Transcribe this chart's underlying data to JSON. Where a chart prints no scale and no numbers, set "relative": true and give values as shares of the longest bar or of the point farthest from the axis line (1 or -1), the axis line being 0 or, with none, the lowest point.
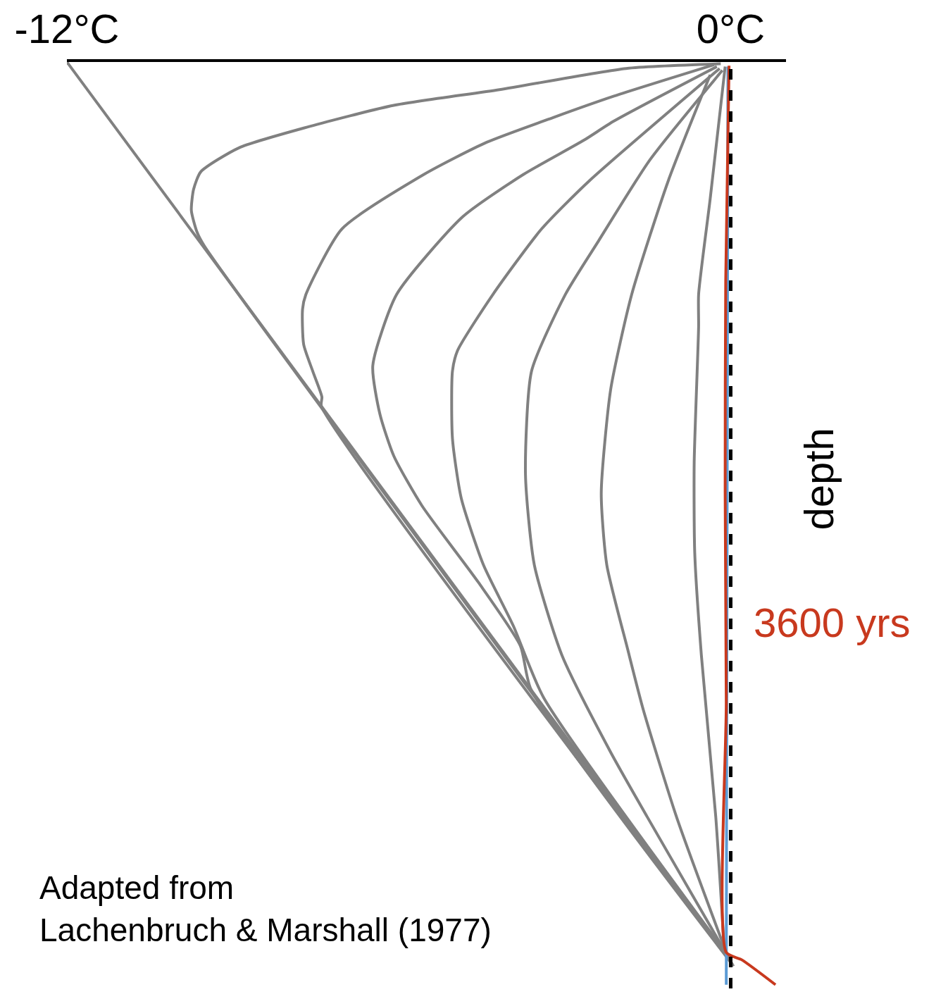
{
  "chart_data": {
    "type": "line",
    "relative": true,
    "ylabel": "depth",
    "xlim": [
      -12,
      1
    ],
    "xticks": [
      {
        "value": -12,
        "label": "-12°C"
      },
      {
        "value": 0,
        "label": "0°C"
      }
    ],
    "tick_labels": "x",
    "legend": false,
    "marker": "none",
    "line_style": "solid",
    "series": [
      {
        "color": "#808080",
        "x": [
          -12,
          -0.05
        ],
        "values": [
          0,
          -0.969
        ]
      },
      {
        "color": "#808080",
        "x": [
          -0.18,
          -1.89,
          -4.18,
          -6.09,
          -7.62,
          -8.89,
          -9.58,
          -9.71,
          -9.75,
          -9.65,
          -9.52,
          -0.03
        ],
        "values": [
          -0.002,
          -0.007,
          -0.03,
          -0.047,
          -0.07,
          -0.093,
          -0.119,
          -0.138,
          -0.161,
          -0.184,
          -0.199,
          -0.972
        ]
      },
      {
        "color": "#808080",
        "x": [
          -0.3,
          -2.11,
          -3.2,
          -4.41,
          -5.55,
          -7.03,
          -7.68,
          -7.74,
          -7.72,
          -7.55,
          -7.39,
          -7.4,
          0.0
        ],
        "values": [
          -0.003,
          -0.037,
          -0.06,
          -0.087,
          -0.122,
          -0.181,
          -0.252,
          -0.268,
          -0.306,
          -0.336,
          -0.363,
          -0.373,
          -0.975
        ]
      },
      {
        "color": "#808080",
        "x": [
          -0.25,
          -2.11,
          -2.66,
          -3.75,
          -4.85,
          -6.04,
          -6.47,
          -6.34,
          -6.09,
          -5.58,
          -4.56,
          -3.8,
          -3.61,
          0.03
        ],
        "values": [
          -0.005,
          -0.064,
          -0.085,
          -0.122,
          -0.168,
          -0.252,
          -0.329,
          -0.382,
          -0.427,
          -0.481,
          -0.564,
          -0.633,
          -0.68,
          -0.978
        ]
      },
      {
        "color": "#808080",
        "x": [
          -0.2,
          -2.56,
          -3.42,
          -4.3,
          -4.94,
          -5.03,
          -5.03,
          -4.87,
          -4.47,
          -3.93,
          -3.38,
          -0.08
        ],
        "values": [
          -0.007,
          -0.129,
          -0.181,
          -0.252,
          -0.313,
          -0.335,
          -0.408,
          -0.473,
          -0.545,
          -0.611,
          -0.689,
          -0.966
        ]
      },
      {
        "color": "#808080",
        "x": [
          -0.15,
          -1.46,
          -2.39,
          -2.99,
          -3.6,
          -3.71,
          -3.55,
          -3.05,
          -2.17,
          -1.51,
          0.05
        ],
        "values": [
          -0.009,
          -0.106,
          -0.194,
          -0.252,
          -0.335,
          -0.447,
          -0.545,
          -0.643,
          -0.748,
          -0.818,
          -0.98
        ]
      },
      {
        "color": "#808080",
        "x": [
          -0.37,
          -1.13,
          -1.79,
          -2.17,
          -2.34,
          -2.24,
          -1.86,
          -1.58,
          -0.98,
          -0.1
        ],
        "values": [
          -0.014,
          -0.129,
          -0.252,
          -0.355,
          -0.467,
          -0.545,
          -0.637,
          -0.702,
          -0.818,
          -0.962
        ]
      },
      {
        "color": "#808080",
        "x": [
          -0.1,
          -0.37,
          -0.58,
          -0.58,
          -0.66,
          -0.65,
          -0.53,
          -0.27,
          -0.12
        ],
        "values": [
          -0.005,
          -0.148,
          -0.252,
          -0.287,
          -0.434,
          -0.532,
          -0.643,
          -0.818,
          -0.958
        ]
      },
      {
        "color": "#5b9bd5",
        "x": [
          -0.05,
          -0.08
        ],
        "values": [
          -0.005,
          -1.0
        ]
      },
      {
        "name": "3600 yrs",
        "color": "#c8391e",
        "x": [
          -0.03,
          -0.09,
          -0.1,
          -0.08,
          -0.08,
          0.2,
          0.81
        ],
        "values": [
          -0.004,
          -0.237,
          -0.465,
          -0.694,
          -0.965,
          -0.973,
          -1.0
        ]
      }
    ],
    "ref_lines": [
      {
        "axis": "x",
        "value": 0,
        "color": "#000000",
        "line_style": "dashed"
      }
    ],
    "annotations": [
      "Adapted from\nLachenbruch & Marshall (1977)"
    ]
  }
}
